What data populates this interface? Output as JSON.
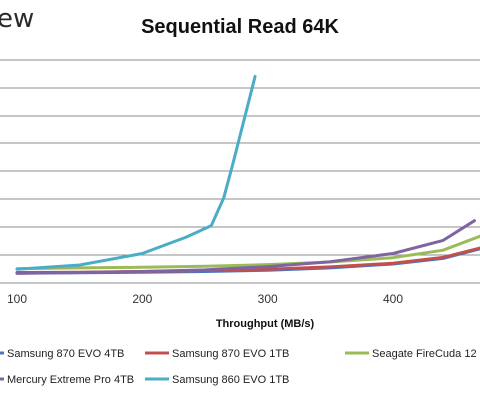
{
  "watermark": "ew",
  "chart_data": {
    "type": "line",
    "title": "Sequential Read 64K",
    "xlabel": "Throughput (MB/s)",
    "ylabel": "",
    "xlim": [
      100,
      480
    ],
    "x_ticks": [
      "100",
      "200",
      "300",
      "400"
    ],
    "grid": true,
    "legend_position": "bottom",
    "series": [
      {
        "name": "Samsung 870 EVO 4TB",
        "color": "#4a74c4",
        "x": [
          100,
          150,
          200,
          250,
          300,
          350,
          400,
          440,
          480
        ],
        "y": [
          0.1,
          0.11,
          0.13,
          0.15,
          0.19,
          0.26,
          0.38,
          0.55,
          0.95
        ]
      },
      {
        "name": "Samsung 870 EVO 1TB",
        "color": "#c0504d",
        "x": [
          100,
          150,
          200,
          250,
          300,
          350,
          400,
          440,
          475
        ],
        "y": [
          0.12,
          0.13,
          0.15,
          0.18,
          0.22,
          0.29,
          0.4,
          0.58,
          0.92
        ]
      },
      {
        "name": "Seagate FireCuda 12",
        "color": "#9bbb59",
        "x": [
          100,
          150,
          200,
          250,
          300,
          350,
          400,
          440,
          480
        ],
        "y": [
          0.24,
          0.26,
          0.28,
          0.31,
          0.36,
          0.44,
          0.57,
          0.8,
          1.38
        ]
      },
      {
        "name": "Mercury Extreme Pro 4TB",
        "color": "#8064a2",
        "x": [
          100,
          150,
          200,
          250,
          300,
          350,
          400,
          440,
          465
        ],
        "y": [
          0.1,
          0.12,
          0.15,
          0.2,
          0.3,
          0.45,
          0.7,
          1.1,
          1.7
        ]
      },
      {
        "name": "Samsung 860 EVO 1TB",
        "color": "#4bacc6",
        "x": [
          100,
          150,
          200,
          235,
          255,
          265,
          272,
          280,
          290
        ],
        "y": [
          0.22,
          0.35,
          0.7,
          1.2,
          1.55,
          2.4,
          3.4,
          4.6,
          6.1
        ]
      }
    ]
  }
}
